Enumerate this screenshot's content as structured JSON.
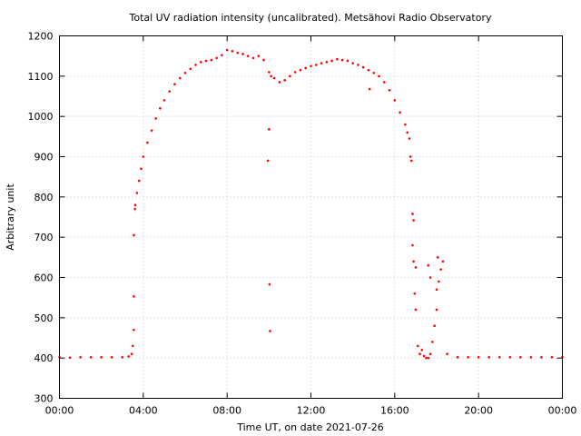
{
  "chart_data": {
    "type": "scatter",
    "title": "Total UV radiation intensity (uncalibrated). Metsähovi Radio Observatory",
    "xlabel": "Time UT, on date 2021-07-26",
    "ylabel": "Arbitrary unit",
    "xlim": [
      0,
      24
    ],
    "ylim": [
      300,
      1200
    ],
    "grid": true,
    "x_ticks": [
      {
        "value": 0,
        "label": "00:00"
      },
      {
        "value": 4,
        "label": "04:00"
      },
      {
        "value": 8,
        "label": "08:00"
      },
      {
        "value": 12,
        "label": "12:00"
      },
      {
        "value": 16,
        "label": "16:00"
      },
      {
        "value": 20,
        "label": "20:00"
      },
      {
        "value": 24,
        "label": "00:00"
      }
    ],
    "y_ticks": [
      {
        "value": 300,
        "label": "300"
      },
      {
        "value": 400,
        "label": "400"
      },
      {
        "value": 500,
        "label": "500"
      },
      {
        "value": 600,
        "label": "600"
      },
      {
        "value": 700,
        "label": "700"
      },
      {
        "value": 800,
        "label": "800"
      },
      {
        "value": 900,
        "label": "900"
      },
      {
        "value": 1000,
        "label": "1000"
      },
      {
        "value": 1100,
        "label": "1100"
      },
      {
        "value": 1200,
        "label": "1200"
      }
    ],
    "marker_color": "#ff0000",
    "series": [
      {
        "x": [
          0.0,
          0.5,
          1.0,
          1.5,
          2.0,
          2.5,
          3.0,
          3.3,
          3.45,
          3.5,
          3.55,
          3.6,
          3.62,
          3.7,
          3.8,
          3.9,
          4.0,
          4.2,
          4.4,
          4.6,
          4.8,
          5.0,
          5.25,
          5.5,
          5.75,
          6.0,
          6.25,
          6.5,
          6.75,
          7.0,
          7.25,
          7.5,
          7.75,
          8.0,
          8.25,
          8.5,
          8.75,
          9.0,
          9.25,
          9.5,
          9.75,
          10.0,
          10.1,
          10.25,
          10.5,
          10.75,
          11.0,
          11.25,
          11.5,
          11.75,
          12.0,
          12.25,
          12.5,
          12.75,
          13.0,
          13.25,
          13.5,
          13.75,
          14.0,
          14.25,
          14.5,
          14.75,
          15.0,
          15.25,
          15.5,
          15.75,
          16.0,
          16.25,
          16.5,
          16.6,
          16.7,
          16.75,
          16.8,
          16.85,
          16.9,
          16.95,
          17.0,
          17.1,
          17.2,
          17.3,
          17.4,
          17.5,
          17.6,
          17.7,
          17.8,
          17.9,
          18.0,
          18.1,
          18.2,
          18.3,
          18.5,
          19.0,
          19.5,
          20.0,
          20.5,
          21.0,
          21.5,
          22.0,
          22.5,
          23.0,
          23.5,
          24.0,
          3.55,
          3.55,
          9.95,
          10.0,
          10.02,
          10.05,
          14.8,
          16.85,
          16.9,
          17.0,
          17.6,
          17.7,
          18.0,
          18.05
        ],
        "y": [
          402,
          401,
          402,
          402,
          402,
          402,
          402,
          404,
          410,
          430,
          470,
          770,
          780,
          810,
          840,
          870,
          900,
          935,
          965,
          995,
          1020,
          1040,
          1062,
          1080,
          1095,
          1108,
          1118,
          1128,
          1135,
          1138,
          1140,
          1145,
          1152,
          1165,
          1162,
          1158,
          1155,
          1150,
          1145,
          1150,
          1140,
          1110,
          1100,
          1095,
          1085,
          1090,
          1100,
          1110,
          1115,
          1120,
          1125,
          1128,
          1132,
          1135,
          1138,
          1142,
          1140,
          1138,
          1132,
          1128,
          1122,
          1115,
          1108,
          1100,
          1085,
          1065,
          1040,
          1010,
          980,
          960,
          945,
          900,
          890,
          680,
          640,
          560,
          520,
          430,
          410,
          420,
          405,
          400,
          400,
          410,
          440,
          480,
          520,
          590,
          620,
          640,
          410,
          402,
          402,
          402,
          402,
          402,
          402,
          402,
          402,
          402,
          402,
          402,
          705,
          553,
          890,
          968,
          583,
          467,
          1068,
          758,
          742,
          625,
          630,
          600,
          570,
          650
        ]
      }
    ]
  }
}
